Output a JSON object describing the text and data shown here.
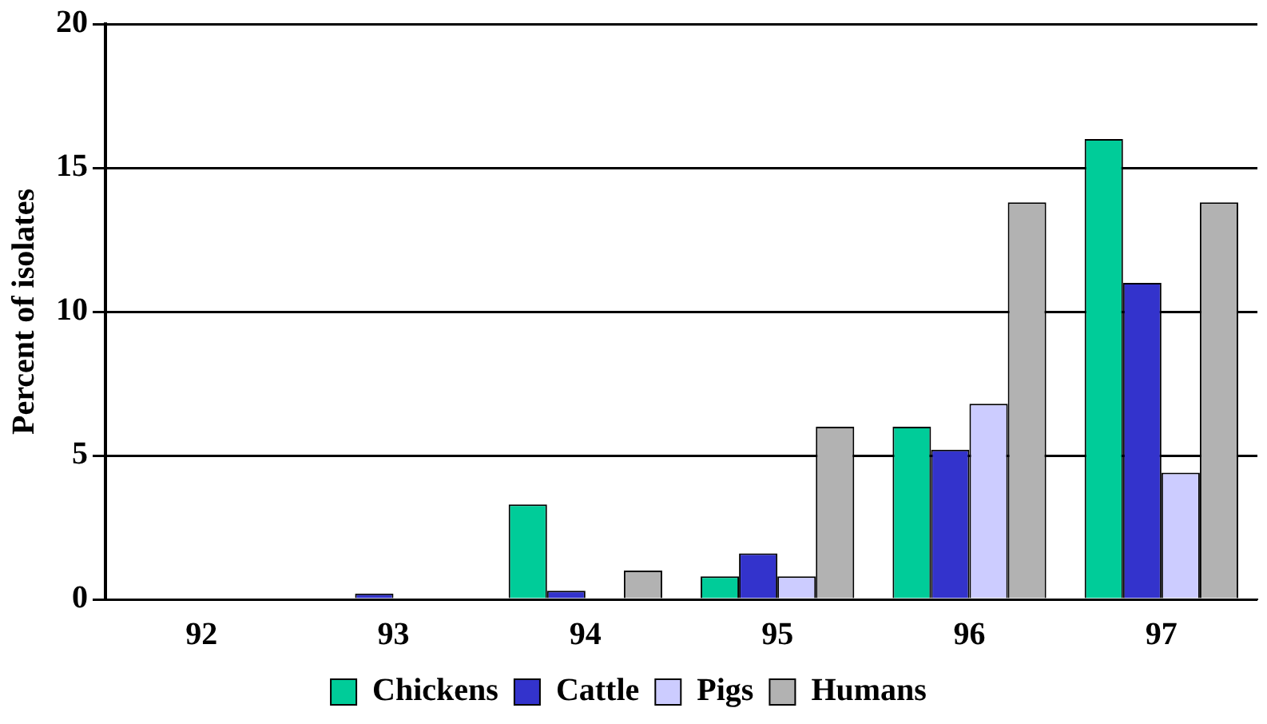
{
  "chart_data": {
    "type": "bar",
    "ylabel": "Percent of isolates",
    "categories": [
      "92",
      "93",
      "94",
      "95",
      "96",
      "97"
    ],
    "series": [
      {
        "name": "Chickens",
        "color": "#00cc99",
        "values": [
          0,
          0,
          3.3,
          0.8,
          6.0,
          16.0
        ]
      },
      {
        "name": "Cattle",
        "color": "#3333cc",
        "values": [
          0,
          0.2,
          0.3,
          1.6,
          5.2,
          11.0
        ]
      },
      {
        "name": "Pigs",
        "color": "#ccccff",
        "values": [
          0,
          0,
          0,
          0.8,
          6.8,
          4.4
        ]
      },
      {
        "name": "Humans",
        "color": "#b2b2b2",
        "values": [
          0,
          0,
          1.0,
          6.0,
          13.8,
          13.8
        ]
      }
    ],
    "ylim": [
      0,
      20
    ],
    "yticks": [
      0,
      5,
      10,
      15,
      20
    ],
    "grid": "y",
    "legend": "bottom"
  }
}
